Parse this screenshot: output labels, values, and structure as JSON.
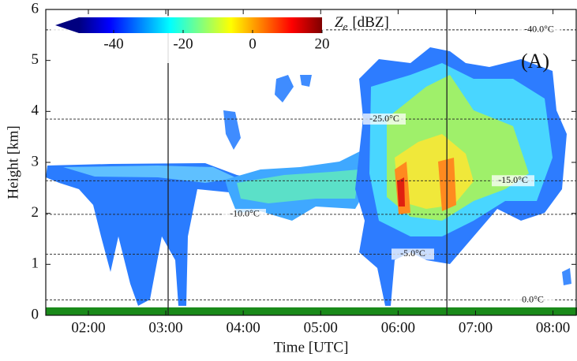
{
  "chart_data": {
    "type": "time-height",
    "panel_label": "(A)",
    "x_label": "Time [UTC]",
    "y_label": "Height [km]",
    "xlim": [
      1.45,
      8.3
    ],
    "xticks": [
      {
        "value": 2,
        "label": "02:00"
      },
      {
        "value": 3,
        "label": "03:00"
      },
      {
        "value": 4,
        "label": "04:00"
      },
      {
        "value": 5,
        "label": "05:00"
      },
      {
        "value": 6,
        "label": "06:00"
      },
      {
        "value": 7,
        "label": "07:00"
      },
      {
        "value": 8,
        "label": "08:00"
      }
    ],
    "ylim": [
      0,
      6
    ],
    "yticks": [
      0,
      1,
      2,
      3,
      4,
      5,
      6
    ],
    "vlines": [
      3.03,
      6.63
    ],
    "isotherms": [
      {
        "label": "-40.0°C",
        "height": 5.6
      },
      {
        "label": "-25.0°C",
        "height": 3.85
      },
      {
        "label": "-15.0°C",
        "height": 2.64
      },
      {
        "label": "-10.0°C",
        "height": 1.98
      },
      {
        "label": "-5.0°C",
        "height": 1.2
      },
      {
        "label": "0.0°C",
        "height": 0.3
      }
    ],
    "colorbar": {
      "symbol": "Z",
      "subscript": "e",
      "unit": "[dBZ]",
      "lim": [
        -50,
        20
      ],
      "ticks": [
        -40,
        -20,
        0,
        20
      ],
      "colors": [
        "#00007f",
        "#0000ff",
        "#0080ff",
        "#00ffff",
        "#80ff80",
        "#ffff00",
        "#ff8000",
        "#ff0000",
        "#7f0000"
      ]
    }
  }
}
